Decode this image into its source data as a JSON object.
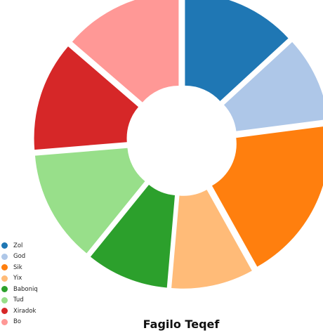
{
  "chart_data": {
    "type": "pie",
    "title": "Fagilo Teqef",
    "categories": [
      "Zol",
      "God",
      "Sik",
      "Yix",
      "Baboniq",
      "Tud",
      "Xiradok",
      "Bo"
    ],
    "values": [
      12.5,
      9.3,
      18.0,
      9.0,
      9.0,
      12.2,
      12.0,
      13.0
    ],
    "colors": [
      "#1f77b4",
      "#aec7e8",
      "#ff7f0e",
      "#ffbb78",
      "#2ca02c",
      "#98df8a",
      "#d62728",
      "#ff9896"
    ],
    "donut": true,
    "exploded": true,
    "legend": "bottom-left"
  }
}
